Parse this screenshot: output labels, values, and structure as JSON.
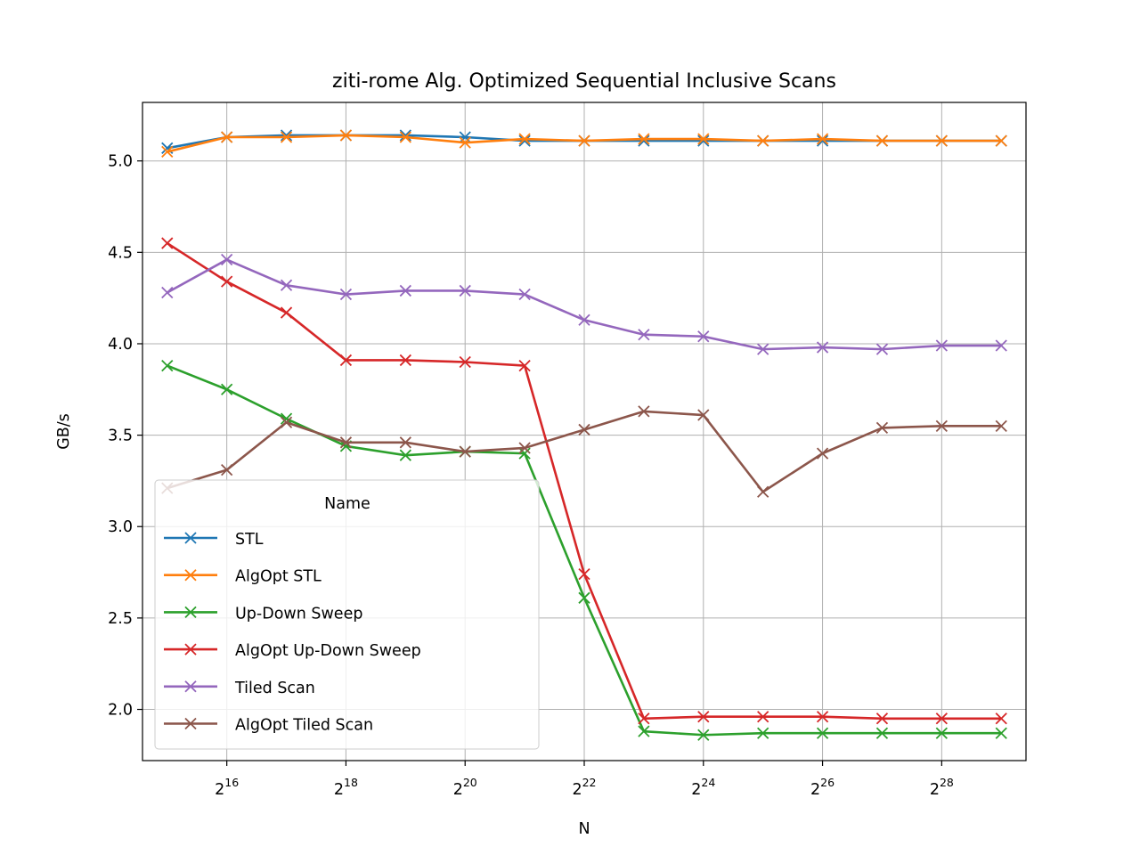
{
  "chart_data": {
    "type": "line",
    "title": "ziti-rome Alg. Optimized Sequential Inclusive Scans",
    "xlabel": "N",
    "ylabel": "GB/s",
    "x_scale": "log2",
    "x": [
      32768,
      65536,
      131072,
      262144,
      524288,
      1048576,
      2097152,
      4194304,
      8388608,
      16777216,
      33554432,
      67108864,
      134217728,
      268435456,
      536870912
    ],
    "xticks": [
      {
        "value": 65536,
        "base": "2",
        "exp": "16"
      },
      {
        "value": 262144,
        "base": "2",
        "exp": "18"
      },
      {
        "value": 1048576,
        "base": "2",
        "exp": "20"
      },
      {
        "value": 4194304,
        "base": "2",
        "exp": "22"
      },
      {
        "value": 16777216,
        "base": "2",
        "exp": "24"
      },
      {
        "value": 67108864,
        "base": "2",
        "exp": "26"
      },
      {
        "value": 268435456,
        "base": "2",
        "exp": "28"
      }
    ],
    "xlim": [
      24576,
      715827882
    ],
    "ylim": [
      1.72,
      5.32
    ],
    "yticks": [
      {
        "value": 2.0,
        "label": "2.0"
      },
      {
        "value": 2.5,
        "label": "2.5"
      },
      {
        "value": 3.0,
        "label": "3.0"
      },
      {
        "value": 3.5,
        "label": "3.5"
      },
      {
        "value": 4.0,
        "label": "4.0"
      },
      {
        "value": 4.5,
        "label": "4.5"
      },
      {
        "value": 5.0,
        "label": "5.0"
      }
    ],
    "grid": true,
    "marker": "x",
    "legend": {
      "title": "Name",
      "placement": "lower-left"
    },
    "series": [
      {
        "name": "STL",
        "color": "#1f77b4",
        "values": [
          5.07,
          5.13,
          5.14,
          5.14,
          5.14,
          5.13,
          5.11,
          5.11,
          5.11,
          5.11,
          5.11,
          5.11,
          5.11,
          5.11,
          5.11
        ]
      },
      {
        "name": "AlgOpt STL",
        "color": "#ff7f0e",
        "values": [
          5.05,
          5.13,
          5.13,
          5.14,
          5.13,
          5.1,
          5.12,
          5.11,
          5.12,
          5.12,
          5.11,
          5.12,
          5.11,
          5.11,
          5.11
        ]
      },
      {
        "name": "Up-Down Sweep",
        "color": "#2ca02c",
        "values": [
          3.88,
          3.75,
          3.59,
          3.44,
          3.39,
          3.41,
          3.4,
          2.61,
          1.88,
          1.86,
          1.87,
          1.87,
          1.87,
          1.87,
          1.87
        ]
      },
      {
        "name": "AlgOpt Up-Down Sweep",
        "color": "#d62728",
        "values": [
          4.55,
          4.34,
          4.17,
          3.91,
          3.91,
          3.9,
          3.88,
          2.74,
          1.95,
          1.96,
          1.96,
          1.96,
          1.95,
          1.95,
          1.95
        ]
      },
      {
        "name": "Tiled Scan",
        "color": "#9467bd",
        "values": [
          4.28,
          4.46,
          4.32,
          4.27,
          4.29,
          4.29,
          4.27,
          4.13,
          4.05,
          4.04,
          3.97,
          3.98,
          3.97,
          3.99,
          3.99
        ]
      },
      {
        "name": "AlgOpt Tiled Scan",
        "color": "#8c564b",
        "values": [
          3.21,
          3.31,
          3.57,
          3.46,
          3.46,
          3.41,
          3.43,
          3.53,
          3.63,
          3.61,
          3.19,
          3.4,
          3.54,
          3.55,
          3.55
        ]
      }
    ]
  }
}
